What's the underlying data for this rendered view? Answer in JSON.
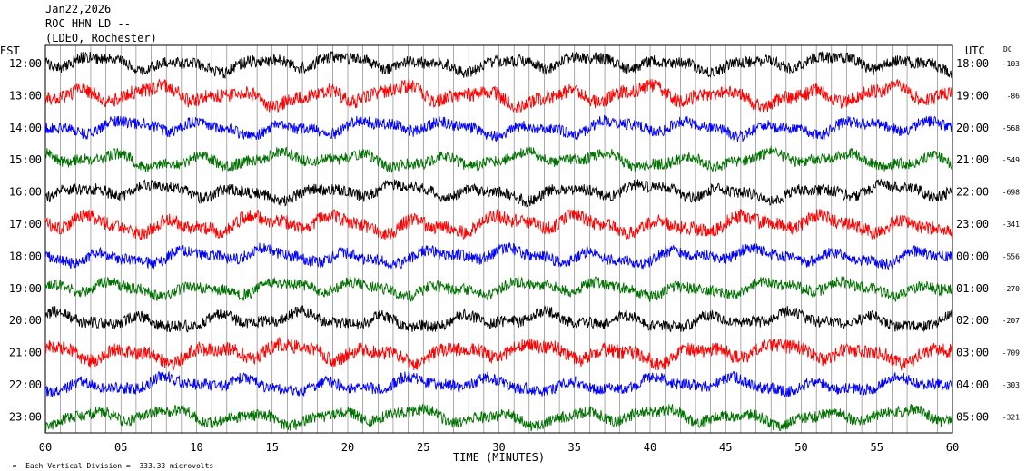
{
  "header": {
    "line1": "Jan22,2026",
    "line2": "ROC HHN LD --",
    "line3": "(LDEO, Rochester)"
  },
  "footer": {
    "division_note": "Each Vertical Division =  333.33 microvolts"
  },
  "chart_data": {
    "type": "line",
    "title": "",
    "xlabel": "TIME (MINUTES)",
    "left_axis_label": "EST",
    "right_axis_label": "UTC",
    "dc_label": "DC",
    "xlim": [
      0,
      60
    ],
    "x_ticks": [
      "00",
      "05",
      "10",
      "15",
      "20",
      "25",
      "30",
      "35",
      "40",
      "45",
      "50",
      "55",
      "60"
    ],
    "colors": [
      "#000000",
      "#ff0000",
      "#0000ff",
      "#007000"
    ],
    "rows": [
      {
        "est": "12:00",
        "utc": "18:00",
        "dc": "-103",
        "color": "#000000"
      },
      {
        "est": "13:00",
        "utc": "19:00",
        "dc": "-86",
        "color": "#ff0000"
      },
      {
        "est": "14:00",
        "utc": "20:00",
        "dc": "-568",
        "color": "#0000ff"
      },
      {
        "est": "15:00",
        "utc": "21:00",
        "dc": "-549",
        "color": "#007000"
      },
      {
        "est": "16:00",
        "utc": "22:00",
        "dc": "-698",
        "color": "#000000"
      },
      {
        "est": "17:00",
        "utc": "23:00",
        "dc": "-341",
        "color": "#ff0000"
      },
      {
        "est": "18:00",
        "utc": "00:00",
        "dc": "-556",
        "color": "#0000ff"
      },
      {
        "est": "19:00",
        "utc": "01:00",
        "dc": "-270",
        "color": "#007000"
      },
      {
        "est": "20:00",
        "utc": "02:00",
        "dc": "-207",
        "color": "#000000"
      },
      {
        "est": "21:00",
        "utc": "03:00",
        "dc": "-709",
        "color": "#ff0000"
      },
      {
        "est": "22:00",
        "utc": "04:00",
        "dc": "-303",
        "color": "#0000ff"
      },
      {
        "est": "23:00",
        "utc": "05:00",
        "dc": "-321",
        "color": "#007000"
      }
    ]
  }
}
